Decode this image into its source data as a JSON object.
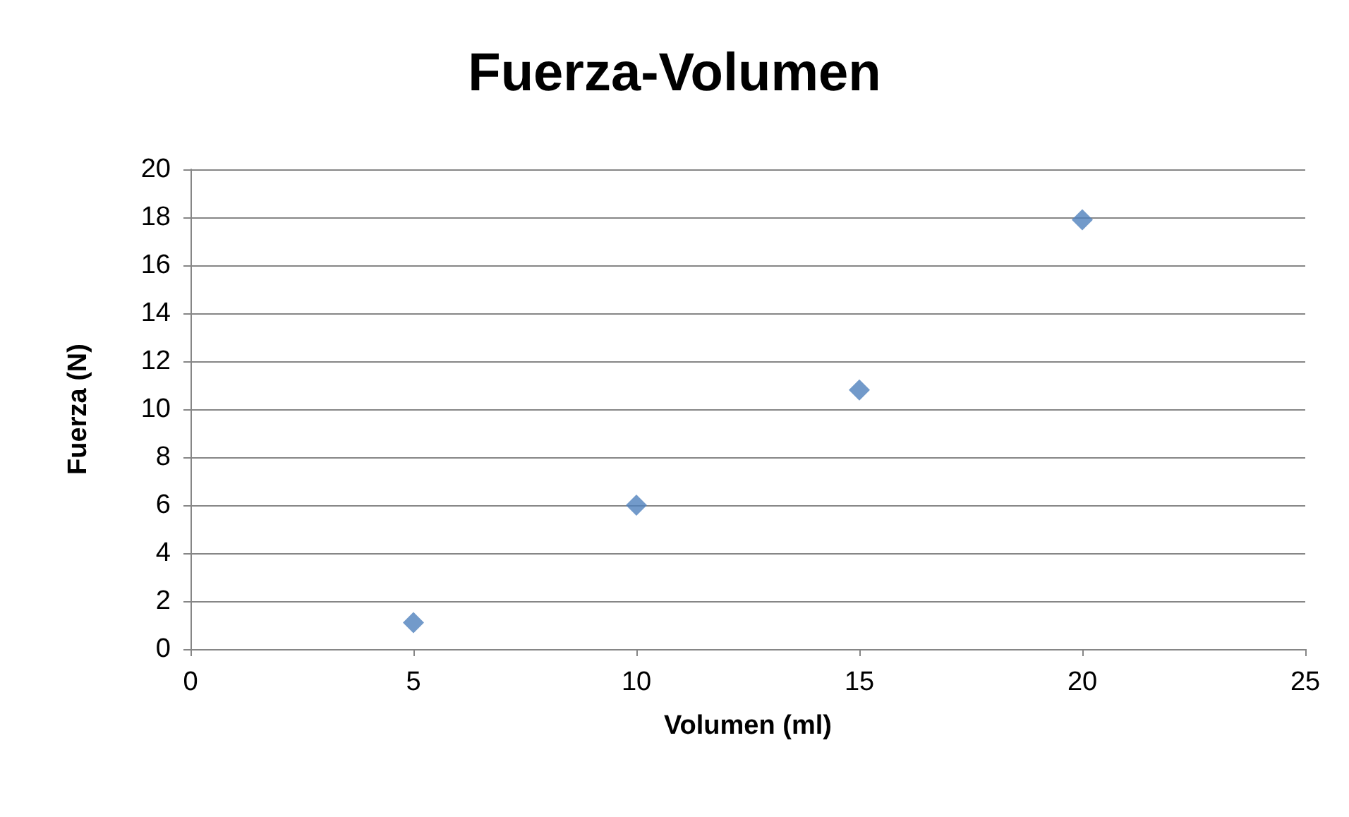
{
  "chart_data": {
    "type": "scatter",
    "title": "Fuerza-Volumen",
    "xlabel": "Volumen (ml)",
    "ylabel": "Fuerza (N)",
    "x": [
      5,
      10,
      15,
      20
    ],
    "series": [
      {
        "color": "#4f81bd",
        "values": [
          1.1,
          6,
          10.8,
          17.9
        ]
      }
    ],
    "xlim": [
      0,
      25
    ],
    "xticks": [
      0,
      5,
      10,
      15,
      20,
      25
    ],
    "ylim": [
      0,
      20
    ],
    "yticks": [
      0,
      2,
      4,
      6,
      8,
      10,
      12,
      14,
      16,
      18,
      20
    ],
    "grid": "y",
    "marker": "diamond"
  }
}
